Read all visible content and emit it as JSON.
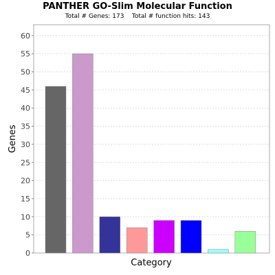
{
  "chart_data": {
    "type": "bar",
    "title": "PANTHER GO-Slim Molecular Function",
    "subtitle": "Total # Genes: 173    Total # function hits: 143",
    "xlabel": "Category",
    "ylabel": "Genes",
    "ylim": [
      0,
      63
    ],
    "yticks": [
      0,
      5,
      10,
      15,
      20,
      25,
      30,
      35,
      40,
      45,
      50,
      55,
      60
    ],
    "grid": true,
    "values": [
      46,
      55,
      10,
      7,
      9,
      9,
      1,
      6
    ],
    "colors": [
      "#666666",
      "#cc99cc",
      "#333399",
      "#ff9999",
      "#cc00ff",
      "#0000ff",
      "#99ffff",
      "#99ff99"
    ]
  }
}
